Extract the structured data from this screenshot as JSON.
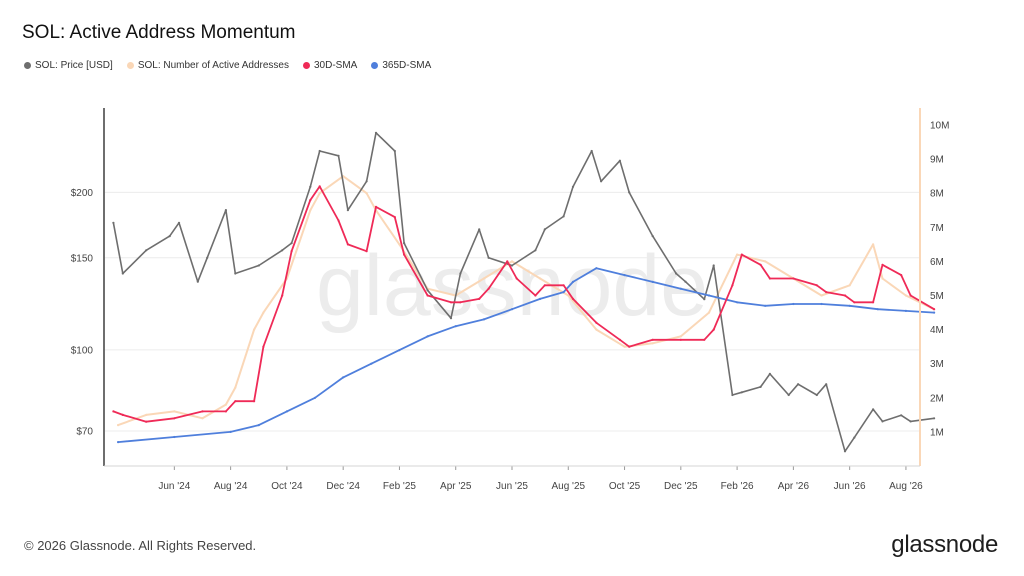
{
  "title": "SOL: Active Address Momentum",
  "legend": [
    {
      "label": "SOL: Price [USD]",
      "color": "#6e6e6e"
    },
    {
      "label": "SOL: Number of Active Addresses",
      "color": "#fad7b7"
    },
    {
      "label": "30D-SMA",
      "color": "#ef2a57"
    },
    {
      "label": "365D-SMA",
      "color": "#4f7fdc"
    }
  ],
  "watermark": "glassnode",
  "footer": {
    "copyright": "© 2026 Glassnode. All Rights Reserved.",
    "logo": "glassnode"
  },
  "chart_data": {
    "type": "line",
    "title": "SOL: Active Address Momentum",
    "x_ticks": [
      "Jun '24",
      "Aug '24",
      "Oct '24",
      "Dec '24",
      "Feb '25",
      "Apr '25",
      "Jun '25",
      "Aug '25",
      "Oct '25",
      "Dec '25",
      "Feb '26",
      "Apr '26",
      "Jun '26",
      "Aug '26"
    ],
    "y_left": {
      "scale": "log",
      "ticks": [
        70,
        100,
        150,
        200
      ],
      "tick_labels": [
        "$70",
        "$100",
        "$150",
        "$200"
      ],
      "range": [
        60,
        290
      ]
    },
    "y_right": {
      "ticks": [
        1,
        2,
        3,
        4,
        5,
        6,
        7,
        8,
        9,
        10
      ],
      "tick_labels": [
        "1M",
        "2M",
        "3M",
        "4M",
        "5M",
        "6M",
        "7M",
        "8M",
        "9M",
        "10M"
      ],
      "range": [
        0,
        10.5
      ],
      "unit": "M"
    },
    "x_range": [
      "Apr '24",
      "Sep '26"
    ],
    "grid": "horizontal",
    "series": [
      {
        "name": "SOL: Price [USD]",
        "axis": "left",
        "color": "#6e6e6e",
        "x": [
          "Apr '24",
          "Apr '24",
          "May '24",
          "Jun '24",
          "Jun '24",
          "Jul '24",
          "Jul '24",
          "Aug '24",
          "Aug '24",
          "Sep '24",
          "Oct '24",
          "Oct '24",
          "Nov '24",
          "Nov '24",
          "Dec '24",
          "Dec '24",
          "Jan '25",
          "Jan '25",
          "Feb '25",
          "Feb '25",
          "Mar '25",
          "Apr '25",
          "Apr '25",
          "May '25",
          "May '25",
          "Jun '25",
          "Jul '25",
          "Jul '25",
          "Aug '25",
          "Aug '25",
          "Sep '25",
          "Sep '25",
          "Oct '25",
          "Oct '25",
          "Nov '25",
          "Dec '25",
          "Dec '25",
          "Jan '26",
          "Jan '26",
          "Feb '26",
          "Feb '26",
          "Mar '26",
          "Mar '26",
          "Apr '26",
          "Apr '26",
          "May '26",
          "May '26",
          "Jun '26",
          "Jun '26",
          "Jul '26",
          "Jul '26",
          "Aug '26",
          "Aug '26",
          "Sep '26"
        ],
        "y": [
          175,
          140,
          155,
          165,
          175,
          135,
          150,
          185,
          140,
          145,
          155,
          160,
          205,
          240,
          235,
          185,
          210,
          260,
          240,
          160,
          130,
          115,
          140,
          170,
          150,
          145,
          155,
          170,
          180,
          205,
          240,
          210,
          230,
          200,
          165,
          140,
          135,
          125,
          145,
          82,
          83,
          85,
          90,
          82,
          86,
          82,
          86,
          64,
          68,
          77,
          73,
          75,
          73,
          74
        ]
      },
      {
        "name": "SOL: Number of Active Addresses",
        "axis": "right",
        "color": "#fad7b7",
        "x": [
          "Apr '24",
          "May '24",
          "Jun '24",
          "Jul '24",
          "Aug '24",
          "Aug '24",
          "Sep '24",
          "Sep '24",
          "Oct '24",
          "Nov '24",
          "Nov '24",
          "Dec '24",
          "Jan '25",
          "Jan '25",
          "Feb '25",
          "Mar '25",
          "Apr '25",
          "May '25",
          "Jun '25",
          "Jul '25",
          "Aug '25",
          "Sep '25",
          "Oct '25",
          "Nov '25",
          "Dec '25",
          "Jan '26",
          "Feb '26",
          "Mar '26",
          "Apr '26",
          "May '26",
          "Jun '26",
          "Jul '26",
          "Jul '26",
          "Aug '26",
          "Sep '26"
        ],
        "y": [
          1.2,
          1.5,
          1.6,
          1.4,
          1.8,
          2.3,
          4.0,
          4.5,
          5.5,
          7.5,
          8.0,
          8.5,
          8.0,
          7.5,
          6.5,
          5.2,
          5.0,
          5.5,
          6.0,
          5.5,
          5.0,
          4.0,
          3.5,
          3.6,
          3.8,
          4.5,
          6.2,
          6.0,
          5.5,
          5.0,
          5.3,
          6.5,
          5.5,
          5.0,
          4.6
        ]
      },
      {
        "name": "30D-SMA",
        "axis": "right",
        "color": "#ef2a57",
        "x": [
          "Apr '24",
          "Apr '24",
          "May '24",
          "Jun '24",
          "Jul '24",
          "Aug '24",
          "Aug '24",
          "Sep '24",
          "Sep '24",
          "Oct '24",
          "Oct '24",
          "Nov '24",
          "Nov '24",
          "Dec '24",
          "Dec '24",
          "Jan '25",
          "Jan '25",
          "Feb '25",
          "Feb '25",
          "Mar '25",
          "Apr '25",
          "Apr '25",
          "May '25",
          "May '25",
          "Jun '25",
          "Jun '25",
          "Jul '25",
          "Jul '25",
          "Aug '25",
          "Aug '25",
          "Sep '25",
          "Oct '25",
          "Oct '25",
          "Nov '25",
          "Dec '25",
          "Jan '26",
          "Jan '26",
          "Feb '26",
          "Feb '26",
          "Mar '26",
          "Mar '26",
          "Apr '26",
          "May '26",
          "May '26",
          "Jun '26",
          "Jun '26",
          "Jul '26",
          "Jul '26",
          "Aug '26",
          "Aug '26",
          "Sep '26"
        ],
        "y": [
          1.6,
          1.5,
          1.3,
          1.4,
          1.6,
          1.6,
          1.9,
          1.9,
          3.5,
          5.0,
          6.3,
          7.8,
          8.2,
          7.2,
          6.5,
          6.3,
          7.6,
          7.3,
          6.2,
          5.0,
          4.8,
          4.8,
          4.9,
          5.2,
          6.0,
          5.5,
          5.0,
          5.3,
          5.3,
          4.9,
          4.2,
          3.7,
          3.5,
          3.7,
          3.7,
          3.7,
          4.0,
          5.3,
          6.2,
          5.9,
          5.5,
          5.5,
          5.3,
          5.1,
          5.0,
          4.8,
          4.8,
          5.9,
          5.6,
          5.0,
          4.6
        ]
      },
      {
        "name": "365D-SMA",
        "axis": "right",
        "color": "#4f7fdc",
        "x": [
          "Apr '24",
          "Jun '24",
          "Aug '24",
          "Sep '24",
          "Oct '24",
          "Nov '24",
          "Dec '24",
          "Jan '25",
          "Feb '25",
          "Mar '25",
          "Apr '25",
          "May '25",
          "Jun '25",
          "Jul '25",
          "Aug '25",
          "Aug '25",
          "Sep '25",
          "Oct '25",
          "Nov '25",
          "Dec '25",
          "Jan '26",
          "Feb '26",
          "Mar '26",
          "Apr '26",
          "May '26",
          "Jun '26",
          "Jul '26",
          "Aug '26",
          "Sep '26"
        ],
        "y": [
          0.7,
          0.85,
          1.0,
          1.2,
          1.6,
          2.0,
          2.6,
          3.0,
          3.4,
          3.8,
          4.1,
          4.3,
          4.6,
          4.9,
          5.1,
          5.4,
          5.8,
          5.6,
          5.4,
          5.2,
          5.0,
          4.8,
          4.7,
          4.75,
          4.75,
          4.7,
          4.6,
          4.55,
          4.5
        ]
      }
    ]
  }
}
